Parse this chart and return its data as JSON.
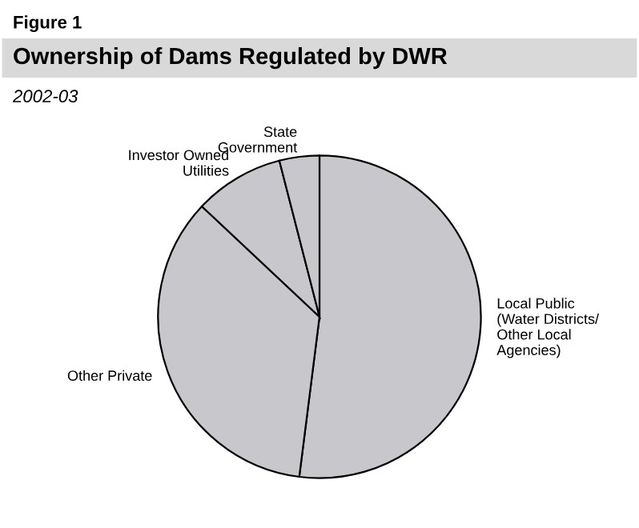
{
  "chart_data": {
    "type": "pie",
    "title": "Ownership of Dams Regulated by DWR",
    "subtitle": "2002-03",
    "annotations": [
      "Figure 1"
    ],
    "categories": [
      "Local Public\n(Water Districts/\nOther Local\nAgencies)",
      "Other Private",
      "Investor Owned\nUtilities",
      "State\nGovernment"
    ],
    "values": [
      52,
      35,
      9,
      4
    ],
    "colors": [
      "#c8c8cc",
      "#c8c8cc",
      "#c8c8cc",
      "#c8c8cc"
    ]
  }
}
